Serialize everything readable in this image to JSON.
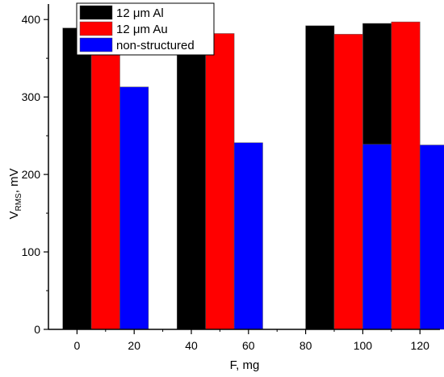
{
  "chart_data": {
    "type": "bar",
    "xlabel": "F, mg",
    "ylabel_main": "V",
    "ylabel_sub": "RMS",
    "ylabel_unit": ", mV",
    "xlim": [
      -10,
      127
    ],
    "ylim": [
      0,
      420
    ],
    "xticks": [
      "0",
      "20",
      "40",
      "60",
      "80",
      "100",
      "120"
    ],
    "yticks": [
      "0",
      "100",
      "200",
      "300",
      "400"
    ],
    "legend_position": "top-left",
    "bar_width": 10,
    "series": [
      {
        "name": "12 μm Al",
        "color": "#000000",
        "points": [
          {
            "x": 0,
            "y": 389
          },
          {
            "x": 40,
            "y": 390
          },
          {
            "x": 85,
            "y": 392
          },
          {
            "x": 105,
            "y": 395
          }
        ]
      },
      {
        "name": "12 μm Au",
        "color": "#ff0000",
        "points": [
          {
            "x": 10,
            "y": 377
          },
          {
            "x": 50,
            "y": 382
          },
          {
            "x": 95,
            "y": 381
          },
          {
            "x": 115,
            "y": 397
          }
        ]
      },
      {
        "name": "non-structured",
        "color": "#0000ff",
        "points": [
          {
            "x": 20,
            "y": 313
          },
          {
            "x": 60,
            "y": 241
          },
          {
            "x": 105,
            "y": 239
          },
          {
            "x": 125,
            "y": 238
          }
        ]
      }
    ]
  }
}
